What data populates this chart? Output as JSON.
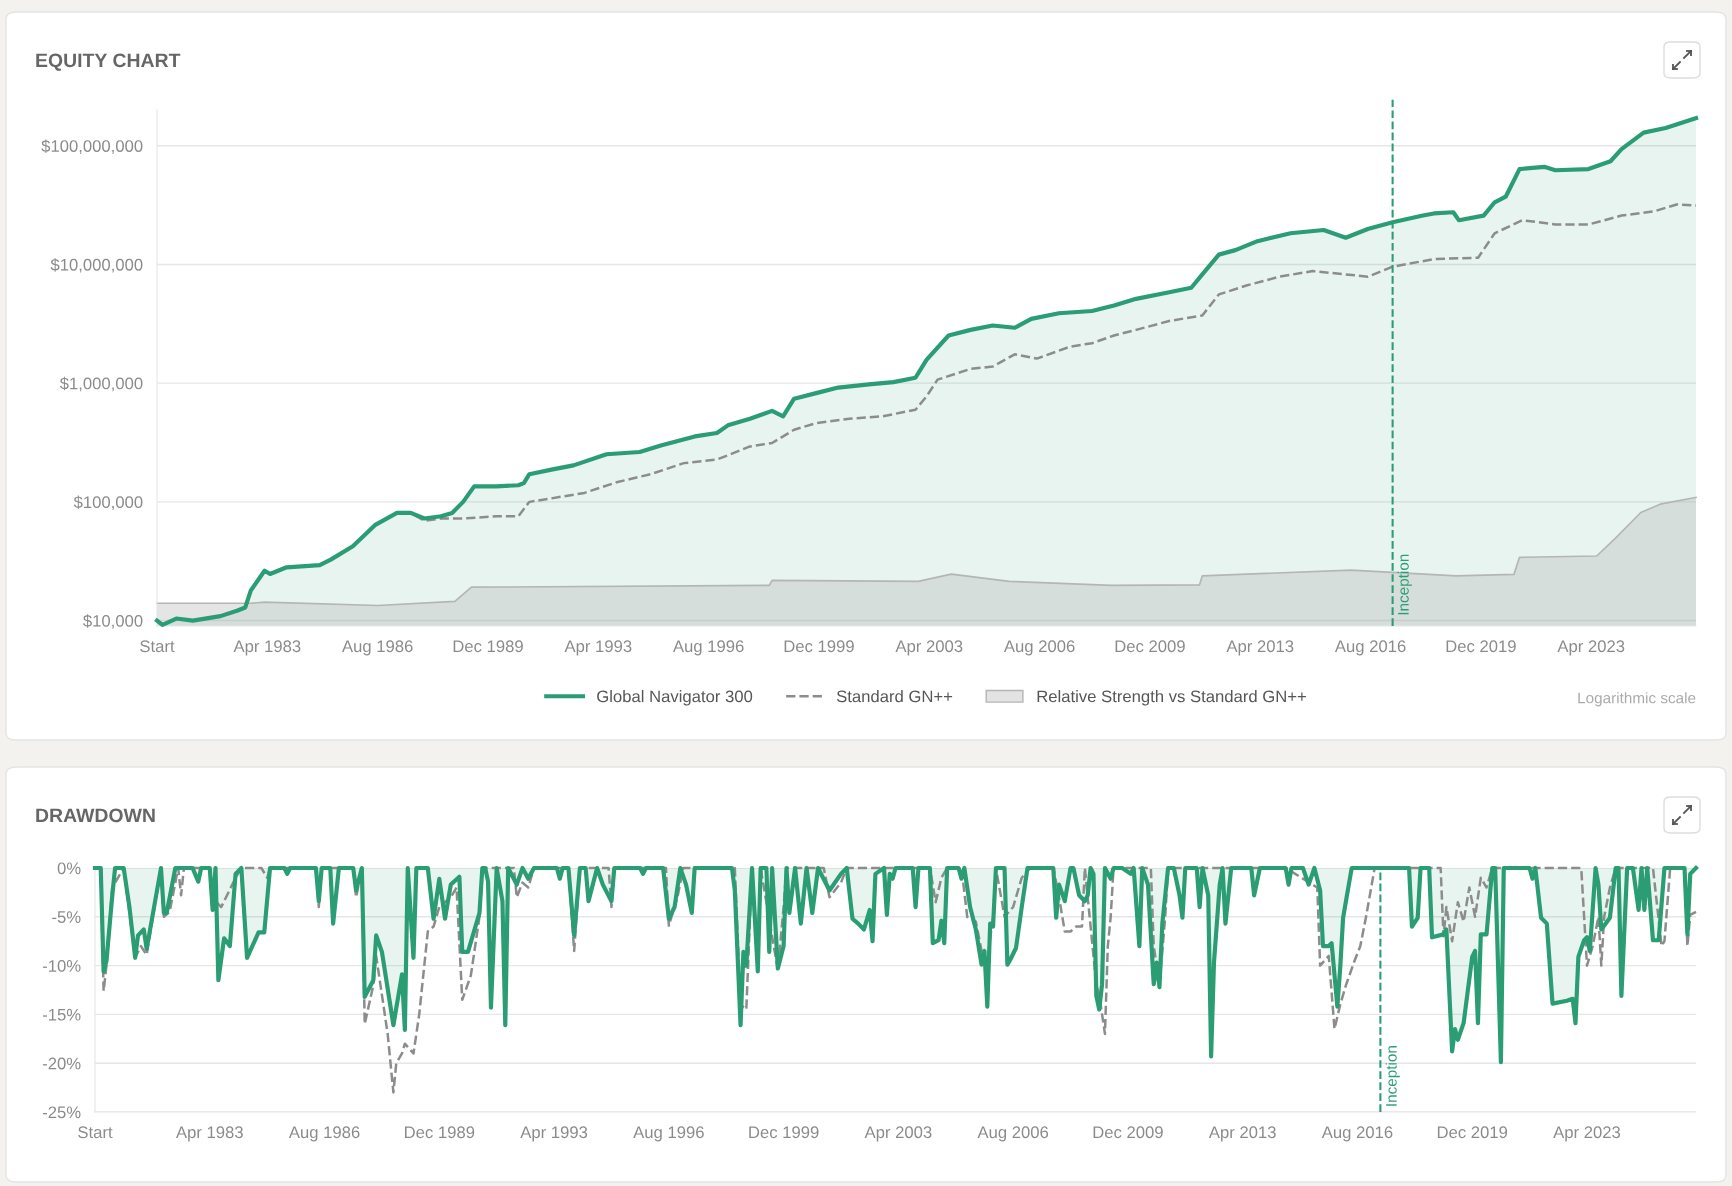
{
  "chart_data": [
    {
      "type": "line",
      "title": "EQUITY CHART",
      "log": true,
      "grid": "y",
      "legend": "bottom",
      "xlim": [
        "1979-12",
        "2026-06"
      ],
      "ylim": [
        9000,
        200000000
      ],
      "xticks": [
        {
          "value": "1979-12",
          "label": "Start"
        },
        {
          "value": "1983-04",
          "label": "Apr 1983"
        },
        {
          "value": "1986-08",
          "label": "Aug 1986"
        },
        {
          "value": "1989-12",
          "label": "Dec 1989"
        },
        {
          "value": "1993-04",
          "label": "Apr 1993"
        },
        {
          "value": "1996-08",
          "label": "Aug 1996"
        },
        {
          "value": "1999-12",
          "label": "Dec 1999"
        },
        {
          "value": "2003-04",
          "label": "Apr 2003"
        },
        {
          "value": "2006-08",
          "label": "Aug 2006"
        },
        {
          "value": "2009-12",
          "label": "Dec 2009"
        },
        {
          "value": "2013-04",
          "label": "Apr 2013"
        },
        {
          "value": "2016-08",
          "label": "Aug 2016"
        },
        {
          "value": "2019-12",
          "label": "Dec 2019"
        },
        {
          "value": "2023-04",
          "label": "Apr 2023"
        }
      ],
      "yticks": [
        {
          "value": 10000,
          "label": "$10,000"
        },
        {
          "value": 100000,
          "label": "$100,000"
        },
        {
          "value": 1000000,
          "label": "$1,000,000"
        },
        {
          "value": 10000000,
          "label": "$10,000,000"
        },
        {
          "value": 100000000,
          "label": "$100,000,000"
        }
      ],
      "series": [
        {
          "name": "Global Navigator 300",
          "type": "area",
          "color": "#2a9d74",
          "x": [
            "1979-12",
            "1980-02",
            "1980-07",
            "1981-01",
            "1981-11",
            "1982-05",
            "1982-08",
            "1982-10",
            "1983-03",
            "1983-05",
            "1983-11",
            "1984-11",
            "1985-03",
            "1985-11",
            "1986-07",
            "1987-03",
            "1987-08",
            "1988-01",
            "1988-07",
            "1988-11",
            "1989-03",
            "1989-07",
            "1990-03",
            "1990-11",
            "1991-01",
            "1991-03",
            "1991-11",
            "1992-07",
            "1993-07",
            "1994-07",
            "1995-03",
            "1996-03",
            "1996-11",
            "1997-03",
            "1997-11",
            "1998-07",
            "1998-11",
            "1999-03",
            "1999-11",
            "2000-07",
            "2001-07",
            "2002-03",
            "2002-11",
            "2003-03",
            "2003-11",
            "2004-07",
            "2005-03",
            "2005-11",
            "2006-05",
            "2007-03",
            "2008-03",
            "2008-11",
            "2009-07",
            "2010-07",
            "2011-03",
            "2011-07",
            "2012-01",
            "2012-07",
            "2013-03",
            "2014-03",
            "2015-03",
            "2015-11",
            "2016-07",
            "2017-04",
            "2018-03",
            "2018-07",
            "2019-02",
            "2019-04",
            "2020-01",
            "2020-05",
            "2020-09",
            "2021-02",
            "2021-11",
            "2022-03",
            "2023-03",
            "2023-11",
            "2024-03",
            "2024-11",
            "2025-07",
            "2026-06"
          ],
          "values": [
            10000,
            9200,
            10400,
            10000,
            10900,
            12100,
            12900,
            17900,
            26300,
            24700,
            28100,
            29300,
            32600,
            42300,
            63600,
            80700,
            80700,
            72400,
            75600,
            80700,
            100000,
            135000,
            135000,
            138000,
            144000,
            171000,
            187000,
            203000,
            252000,
            263000,
            300000,
            356000,
            380000,
            441000,
            502000,
            584000,
            525000,
            740000,
            824000,
            918000,
            980000,
            1020000,
            1110000,
            1570000,
            2520000,
            2810000,
            3060000,
            2930000,
            3480000,
            3880000,
            4050000,
            4510000,
            5130000,
            5840000,
            6360000,
            8240000,
            12100000,
            13200000,
            15700000,
            18300000,
            19500000,
            16800000,
            19900000,
            22700000,
            25800000,
            26900000,
            27500000,
            23600000,
            25800000,
            33400000,
            37200000,
            63600000,
            66400000,
            62200000,
            63600000,
            74000000,
            93700000,
            129000000,
            141000000,
            171000000
          ]
        },
        {
          "name": "Standard GN++",
          "line_style": "dashed",
          "color": "#8c8c8c",
          "x": [
            "1979-12",
            "1980-02",
            "1980-07",
            "1981-01",
            "1981-11",
            "1982-05",
            "1982-08",
            "1982-10",
            "1983-03",
            "1983-05",
            "1983-11",
            "1984-11",
            "1985-03",
            "1985-11",
            "1986-07",
            "1987-03",
            "1987-08",
            "1988-01",
            "1988-07",
            "1989-03",
            "1990-03",
            "1990-11",
            "1991-03",
            "1991-11",
            "1992-11",
            "1993-11",
            "1994-11",
            "1995-11",
            "1996-11",
            "1997-11",
            "1998-07",
            "1999-03",
            "1999-11",
            "2000-11",
            "2001-11",
            "2002-11",
            "2003-03",
            "2003-07",
            "2004-07",
            "2005-03",
            "2005-11",
            "2006-07",
            "2007-07",
            "2008-03",
            "2008-11",
            "2009-07",
            "2010-07",
            "2011-07",
            "2012-01",
            "2012-11",
            "2013-11",
            "2014-11",
            "2015-11",
            "2016-07",
            "2017-04",
            "2018-07",
            "2019-11",
            "2020-05",
            "2021-03",
            "2022-03",
            "2023-03",
            "2024-03",
            "2025-03",
            "2025-11",
            "2026-06"
          ],
          "values": [
            10000,
            9200,
            10400,
            10000,
            10900,
            12100,
            12900,
            17900,
            26300,
            24700,
            28100,
            29300,
            32600,
            42300,
            63600,
            80700,
            80700,
            69300,
            72400,
            72400,
            75600,
            75600,
            100000,
            107000,
            119000,
            147000,
            171000,
            212000,
            227000,
            293000,
            313000,
            405000,
            461000,
            502000,
            525000,
            597000,
            773000,
            1070000,
            1320000,
            1380000,
            1750000,
            1610000,
            2030000,
            2170000,
            2520000,
            2810000,
            3340000,
            3720000,
            5590000,
            6640000,
            7890000,
            8790000,
            8240000,
            7890000,
            9570000,
            11100000,
            11400000,
            18300000,
            23600000,
            21700000,
            21700000,
            25800000,
            28100000,
            32000000,
            31300000
          ]
        },
        {
          "name": "Relative Strength vs Standard GN++",
          "type": "area",
          "color": "#b5b5b5",
          "x": [
            "1979-12",
            "1982-10",
            "1983-03",
            "1986-08",
            "1988-12",
            "1989-06",
            "1998-06",
            "1998-07",
            "2002-12",
            "2003-12",
            "2005-09",
            "2008-10",
            "2011-06",
            "2011-07",
            "2016-01",
            "2019-03",
            "2020-12",
            "2021-02",
            "2023-06",
            "2024-01",
            "2024-10",
            "2025-05",
            "2026-06"
          ],
          "values": [
            14000,
            14000,
            14300,
            13400,
            14500,
            19100,
            19800,
            21800,
            21400,
            24600,
            21400,
            19800,
            20000,
            23800,
            26600,
            23800,
            24500,
            34100,
            35000,
            49900,
            81300,
            95600,
            109000
          ]
        }
      ],
      "ref_lines": [
        {
          "axis": "x",
          "value": "2017-04",
          "label": "Inception",
          "color": "#2a9d74",
          "line_style": "dashed"
        }
      ],
      "annotations": [
        "Logarithmic scale"
      ]
    },
    {
      "type": "line",
      "title": "DRAWDOWN",
      "grid": "y",
      "xlim": [
        "1979-12",
        "2026-06"
      ],
      "ylim": [
        -25,
        0
      ],
      "xticks": [
        {
          "value": "1979-12",
          "label": "Start"
        },
        {
          "value": "1983-04",
          "label": "Apr 1983"
        },
        {
          "value": "1986-08",
          "label": "Aug 1986"
        },
        {
          "value": "1989-12",
          "label": "Dec 1989"
        },
        {
          "value": "1993-04",
          "label": "Apr 1993"
        },
        {
          "value": "1996-08",
          "label": "Aug 1996"
        },
        {
          "value": "1999-12",
          "label": "Dec 1999"
        },
        {
          "value": "2003-04",
          "label": "Apr 2003"
        },
        {
          "value": "2006-08",
          "label": "Aug 2006"
        },
        {
          "value": "2009-12",
          "label": "Dec 2009"
        },
        {
          "value": "2013-04",
          "label": "Apr 2013"
        },
        {
          "value": "2016-08",
          "label": "Aug 2016"
        },
        {
          "value": "2019-12",
          "label": "Dec 2019"
        },
        {
          "value": "2023-04",
          "label": "Apr 2023"
        }
      ],
      "yticks": [
        {
          "value": 0,
          "label": "0%"
        },
        {
          "value": -5,
          "label": "-5%"
        },
        {
          "value": -10,
          "label": "-10%"
        },
        {
          "value": -15,
          "label": "-15%"
        },
        {
          "value": -20,
          "label": "-20%"
        },
        {
          "value": -25,
          "label": "-25%"
        }
      ],
      "series": [
        {
          "type": "area",
          "color": "#2a9d74",
          "x": [
            "1979-12",
            "1980-02",
            "1980-03",
            "1980-04",
            "1980-06",
            "1980-07",
            "1980-10",
            "1980-12",
            "1981-02",
            "1981-03",
            "1981-05",
            "1981-06",
            "1981-11",
            "1981-12",
            "1982-01",
            "1982-04",
            "1982-10",
            "1982-12",
            "1983-01",
            "1983-04",
            "1983-05",
            "1983-06",
            "1983-07",
            "1983-09",
            "1983-11",
            "1984-01",
            "1984-03",
            "1984-05",
            "1984-09",
            "1984-11",
            "1985-01",
            "1985-06",
            "1985-07",
            "1985-08",
            "1986-05",
            "1986-06",
            "1986-07",
            "1986-10",
            "1986-11",
            "1987-01",
            "1987-06",
            "1987-07",
            "1987-09",
            "1987-10",
            "1988-01",
            "1988-02",
            "1988-04",
            "1988-08",
            "1988-11",
            "1988-12",
            "1989-01",
            "1989-03",
            "1989-04",
            "1989-08",
            "1989-10",
            "1989-12",
            "1990-02",
            "1990-04",
            "1990-07",
            "1990-08",
            "1990-10",
            "1991-02",
            "1991-03",
            "1991-04",
            "1991-05",
            "1991-06",
            "1991-08",
            "1991-10",
            "1991-11",
            "1991-12",
            "1992-03",
            "1992-05",
            "1992-07",
            "1992-09",
            "1993-05",
            "1993-06",
            "1993-07",
            "1993-09",
            "1993-11",
            "1994-01",
            "1994-03",
            "1994-04",
            "1994-07",
            "1994-09",
            "1994-12",
            "1995-01",
            "1995-10",
            "1995-11",
            "1995-12",
            "1996-06",
            "1996-08",
            "1996-10",
            "1996-12",
            "1997-02",
            "1997-04",
            "1997-05",
            "1998-06",
            "1998-07",
            "1998-09",
            "1998-10",
            "1998-11",
            "1999-01",
            "1999-03",
            "1999-04",
            "1999-06",
            "1999-07",
            "1999-08",
            "1999-10",
            "1999-12",
            "2000-01",
            "2000-02",
            "2000-04",
            "2000-06",
            "2000-08",
            "2000-10",
            "2000-12",
            "2001-04",
            "2001-08",
            "2001-10",
            "2001-12",
            "2002-02",
            "2002-04",
            "2002-06",
            "2002-07",
            "2002-08",
            "2002-11",
            "2002-12",
            "2003-01",
            "2003-02",
            "2003-03",
            "2003-09",
            "2003-10",
            "2003-11",
            "2004-03",
            "2004-04",
            "2004-06",
            "2004-07",
            "2004-08",
            "2004-09",
            "2005-01",
            "2005-02",
            "2005-03",
            "2005-05",
            "2005-07",
            "2005-09",
            "2005-10",
            "2005-11",
            "2005-12",
            "2006-01",
            "2006-02",
            "2006-05",
            "2006-06",
            "2006-07",
            "2006-09",
            "2006-11",
            "2007-01",
            "2007-10",
            "2007-11",
            "2007-12",
            "2008-02",
            "2008-04",
            "2008-05",
            "2008-07",
            "2008-09",
            "2008-10",
            "2008-11",
            "2008-12",
            "2009-01",
            "2009-02",
            "2009-03",
            "2009-04",
            "2009-06",
            "2009-07",
            "2009-10",
            "2010-01",
            "2010-02",
            "2010-04",
            "2010-05",
            "2010-07",
            "2010-09",
            "2010-10",
            "2010-11",
            "2010-12",
            "2011-02",
            "2011-04",
            "2011-06",
            "2011-07",
            "2011-08",
            "2011-12",
            "2012-01",
            "2012-02",
            "2012-04",
            "2012-05",
            "2012-06",
            "2012-08",
            "2012-09",
            "2012-10",
            "2012-12",
            "2013-07",
            "2013-08",
            "2013-10",
            "2014-07",
            "2014-08",
            "2014-09",
            "2015-01",
            "2015-03",
            "2015-05",
            "2015-07",
            "2015-08",
            "2015-10",
            "2015-11",
            "2016-01",
            "2016-02",
            "2016-03",
            "2016-04",
            "2016-06",
            "2018-02",
            "2018-03",
            "2018-05",
            "2018-06",
            "2018-09",
            "2018-10",
            "2019-02",
            "2019-03",
            "2019-05",
            "2019-06",
            "2019-07",
            "2019-09",
            "2019-12",
            "2020-01",
            "2020-02",
            "2020-03",
            "2020-05",
            "2020-07",
            "2020-08",
            "2020-10",
            "2020-11",
            "2021-08",
            "2021-09",
            "2021-10",
            "2021-12",
            "2022-02",
            "2022-04",
            "2022-09",
            "2022-11",
            "2022-12",
            "2023-01",
            "2023-03",
            "2023-04",
            "2023-05",
            "2023-07",
            "2023-08",
            "2023-09",
            "2023-12",
            "2024-02",
            "2024-03",
            "2024-04",
            "2024-06",
            "2024-08",
            "2024-10",
            "2024-11",
            "2024-12",
            "2025-01",
            "2025-03",
            "2025-05",
            "2025-07",
            "2026-02",
            "2026-03",
            "2026-04",
            "2026-06"
          ],
          "values": [
            0,
            0,
            -10.6,
            -9.5,
            -2.9,
            0,
            0,
            -4.0,
            -9.2,
            -6.9,
            -6.3,
            -8.3,
            0,
            -4.6,
            -4.6,
            0,
            0,
            -1.4,
            0,
            0,
            -4.3,
            0,
            -11.5,
            -7.2,
            -8.0,
            -0.6,
            0,
            -9.2,
            -6.6,
            -6.6,
            0,
            0,
            -0.6,
            0,
            0,
            -3.4,
            0,
            0,
            -5.7,
            0,
            0,
            -2.3,
            0,
            -13.2,
            -11.5,
            -6.9,
            -8.6,
            -16.1,
            -10.9,
            -16.6,
            0,
            -9.2,
            0,
            0,
            -5.2,
            -1.1,
            -5.2,
            -1.7,
            -0.9,
            -8.6,
            -8.6,
            -4.6,
            0,
            0,
            -1.4,
            -14.3,
            0,
            -3.4,
            -16.1,
            0,
            -1.7,
            0,
            -1.1,
            0,
            0,
            -1.1,
            0,
            0,
            -6.9,
            0,
            0,
            -3.4,
            0,
            -1.7,
            -3.4,
            0,
            0,
            -0.6,
            0,
            0,
            -5.2,
            -4.0,
            0,
            -1.7,
            -4.6,
            0,
            0,
            -2.3,
            -16.1,
            -8.6,
            -10.0,
            0,
            -10.6,
            0,
            0,
            -8.6,
            0,
            -10.3,
            -8.0,
            0,
            -4.6,
            0,
            -5.7,
            0,
            -4.6,
            0,
            -2.3,
            -0.6,
            0,
            -5.2,
            -5.7,
            -6.3,
            -4.3,
            -7.5,
            -0.6,
            0,
            -4.8,
            -0.6,
            -1.1,
            0,
            0,
            -4.0,
            0,
            0,
            -7.7,
            -7.4,
            -5.4,
            -7.7,
            0,
            0,
            -1.1,
            0,
            -4.0,
            -6.3,
            -9.9,
            -8.5,
            -14.2,
            -5.7,
            -6.0,
            0,
            0,
            -9.9,
            -9.4,
            -8.2,
            -4.0,
            0,
            0,
            -5.1,
            -1.7,
            -3.4,
            0,
            0,
            -2.8,
            -3.4,
            -2.8,
            0,
            -0.6,
            -13.1,
            -14.5,
            -11.9,
            0,
            -1.1,
            0,
            0,
            -0.6,
            0,
            -8.0,
            0,
            -1.7,
            -11.9,
            -9.7,
            -12.2,
            -5.7,
            0,
            0,
            -2.8,
            -5.1,
            0,
            0,
            -4.0,
            0,
            -2.8,
            -19.3,
            -9.7,
            -1.7,
            0,
            -5.7,
            0,
            0,
            -2.8,
            0,
            0,
            -1.7,
            0,
            0,
            -1.7,
            0,
            -2.3,
            -8.0,
            -8.0,
            -7.7,
            -14.2,
            -10.2,
            -5.1,
            -3.4,
            0,
            0,
            -6.0,
            -5.1,
            0,
            0,
            -7.1,
            -6.8,
            -6.3,
            -18.8,
            -16.5,
            -17.6,
            -15.9,
            -9.1,
            -8.5,
            -15.9,
            -6.8,
            -6.8,
            0,
            0,
            -19.9,
            0,
            0,
            -1.1,
            0,
            -5.1,
            -5.7,
            -13.9,
            -13.6,
            -13.4,
            -15.9,
            -9.1,
            -7.4,
            -7.1,
            -8.5,
            0,
            -1.7,
            -6.3,
            -5.1,
            0,
            0,
            -13.1,
            0,
            0,
            -4.3,
            0,
            -4.3,
            0,
            -7.4,
            -7.4,
            0,
            0,
            -6.8,
            -0.6,
            0
          ]
        },
        {
          "line_style": "dashed",
          "color": "#8c8c8c",
          "x": [
            "1979-12",
            "1980-02",
            "1980-03",
            "1980-04",
            "1980-06",
            "1980-08",
            "1980-10",
            "1981-02",
            "1981-04",
            "1981-06",
            "1981-11",
            "1981-12",
            "1982-02",
            "1982-05",
            "1982-06",
            "1982-07",
            "1983-04",
            "1983-06",
            "1983-08",
            "1984-01",
            "1984-03",
            "1984-10",
            "1984-12",
            "1985-01",
            "1986-05",
            "1986-06",
            "1986-07",
            "1987-06",
            "1987-07",
            "1987-09",
            "1987-10",
            "1988-01",
            "1988-02",
            "1988-06",
            "1988-08",
            "1988-09",
            "1988-11",
            "1988-12",
            "1989-03",
            "1989-05",
            "1989-08",
            "1989-10",
            "1989-12",
            "1990-04",
            "1990-06",
            "1990-08",
            "1990-11",
            "1991-02",
            "1991-03",
            "1992-02",
            "1992-03",
            "1992-05",
            "1992-07",
            "1992-09",
            "1993-09",
            "1993-11",
            "1994-01",
            "1994-11",
            "1994-12",
            "1995-01",
            "1996-07",
            "1996-08",
            "1996-11",
            "1997-01",
            "1998-07",
            "1998-09",
            "1998-11",
            "1999-01",
            "1999-03",
            "1999-04",
            "1999-10",
            "1999-12",
            "2000-01",
            "2001-02",
            "2001-04",
            "2001-08",
            "2001-10",
            "2002-08",
            "2004-03",
            "2004-05",
            "2004-07",
            "2004-09",
            "2005-02",
            "2005-04",
            "2005-07",
            "2005-09",
            "2005-11",
            "2006-01",
            "2006-02",
            "2006-05",
            "2006-08",
            "2006-11",
            "2007-02",
            "2007-10",
            "2007-12",
            "2008-02",
            "2008-04",
            "2008-06",
            "2008-08",
            "2008-09",
            "2009-01",
            "2009-02",
            "2009-04",
            "2009-05",
            "2009-06",
            "2009-07",
            "2010-08",
            "2010-09",
            "2010-11",
            "2011-01",
            "2011-02",
            "2014-07",
            "2015-06",
            "2015-07",
            "2015-10",
            "2015-12",
            "2016-02",
            "2016-04",
            "2016-07",
            "2016-09",
            "2016-11",
            "2017-02",
            "2019-01",
            "2019-02",
            "2019-03",
            "2019-05",
            "2019-07",
            "2019-09",
            "2019-11",
            "2020-01",
            "2020-03",
            "2020-05",
            "2020-07",
            "2023-02",
            "2023-04",
            "2023-06",
            "2023-08",
            "2023-09",
            "2023-10",
            "2023-12",
            "2024-01",
            "2024-02",
            "2025-03",
            "2025-06",
            "2025-07",
            "2025-09",
            "2026-02",
            "2026-03",
            "2026-04",
            "2026-06"
          ],
          "values": [
            0,
            0,
            -12.6,
            -10.0,
            -2.0,
            -1.0,
            0,
            -9.2,
            -8.0,
            -8.9,
            0,
            -5.0,
            -4.5,
            0,
            -2.8,
            0,
            0,
            -3.4,
            -4.0,
            -1.0,
            0,
            0,
            -1.0,
            0,
            0,
            -4.0,
            0,
            0,
            -3.0,
            0,
            -16.0,
            -12.0,
            -9.0,
            -17.0,
            -23.0,
            -20.0,
            -19.0,
            -18.0,
            -19.0,
            -15.0,
            -6.5,
            -6.0,
            -4.0,
            -3.0,
            -2.0,
            -13.5,
            -11.0,
            -5.0,
            0,
            0,
            -3.0,
            -1.5,
            -2.0,
            0,
            0,
            -8.5,
            0,
            0,
            -4.0,
            0,
            0,
            -5.9,
            -3.0,
            0,
            0,
            -14.0,
            -14.5,
            0,
            -9.0,
            0,
            -10.5,
            -4.0,
            0,
            0,
            -3.0,
            -1.5,
            0,
            0,
            0,
            -3.5,
            -1.0,
            0,
            0,
            -5.0,
            -5.5,
            -8.5,
            -9.5,
            -5.0,
            0,
            -5.0,
            -4.0,
            -1.0,
            0,
            0,
            -3.0,
            -6.5,
            -6.5,
            -6.0,
            -6.0,
            0,
            -12.0,
            -13.0,
            -17.0,
            -8.0,
            -5.0,
            0,
            0,
            -8.0,
            -12.0,
            -5.0,
            0,
            0,
            -2.0,
            -10.0,
            -9.0,
            -16.5,
            -14.0,
            -12.0,
            -9.5,
            -8.0,
            -5.0,
            0,
            0,
            -7.0,
            -4.0,
            -7.5,
            -3.5,
            -5.5,
            -2.0,
            -5.0,
            -1.0,
            -2.0,
            0,
            0,
            -10.0,
            -8.0,
            -5.0,
            -10.0,
            -5.0,
            -2.0,
            -1.0,
            0,
            0,
            -8.0,
            -7.5,
            0,
            0,
            -8.0,
            -4.8,
            -4.5
          ]
        }
      ],
      "ref_lines": [
        {
          "axis": "x",
          "value": "2017-04",
          "label": "Inception",
          "color": "#2a9d74",
          "line_style": "dashed"
        }
      ]
    }
  ]
}
